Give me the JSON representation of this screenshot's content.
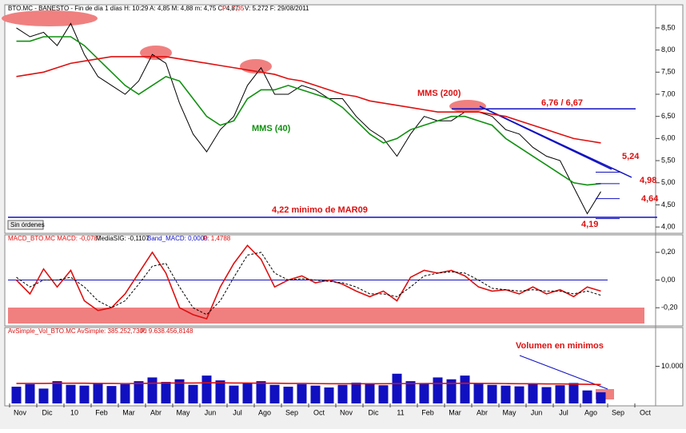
{
  "header": {
    "price": [
      "BTO.MC - BANESTO - Fin de día 1 días H: 10:29 A: 4,85 M: 4,88 m: 4,75 C: 4,87",
      "P : 7,35",
      "V: 5.272 F: 29/08/2011"
    ],
    "macd": [
      "MACD_BTO.MC MACD: -0,0787",
      "MediaSIG: -0,1107",
      "Band_MACD: 0,0000",
      "P: 1,4788"
    ],
    "volume": [
      "AvSimple_Vol_BTO.MC AvSimple: 385.252,7300",
      "P: 9.638.456,8148"
    ],
    "button": "Sin órdenes"
  },
  "time_axis": {
    "labels": [
      "Nov",
      "Dic",
      "10",
      "Feb",
      "Mar",
      "Abr",
      "May",
      "Jun",
      "Jul",
      "Ago",
      "Sep",
      "Oct",
      "Nov",
      "Dic",
      "11",
      "Feb",
      "Mar",
      "Abr",
      "May",
      "Jun",
      "Jul",
      "Ago",
      "Sep",
      "Oct"
    ]
  },
  "chart_data": [
    {
      "type": "line",
      "ylim": [
        3.93,
        8.95
      ],
      "yticks": [
        {
          "value": 4,
          "label": "4,00"
        },
        {
          "value": 4.5,
          "label": "4,50"
        },
        {
          "value": 5,
          "label": "5,00"
        },
        {
          "value": 5.5,
          "label": "5,50"
        },
        {
          "value": 6,
          "label": "6,00"
        },
        {
          "value": 6.5,
          "label": "6,50"
        },
        {
          "value": 7,
          "label": "7,00"
        },
        {
          "value": 7.5,
          "label": "7,50"
        },
        {
          "value": 8,
          "label": "8,00"
        },
        {
          "value": 8.5,
          "label": "8,50"
        }
      ],
      "series": [
        {
          "name": "BTO.MC",
          "color": "#000000",
          "values": [
            8.5,
            8.3,
            8.4,
            8.1,
            8.6,
            7.9,
            7.4,
            7.2,
            7.0,
            7.3,
            7.9,
            7.7,
            6.8,
            6.1,
            5.7,
            6.2,
            6.5,
            7.2,
            7.6,
            7.0,
            7.0,
            7.2,
            7.1,
            6.9,
            6.9,
            6.5,
            6.2,
            6.0,
            5.6,
            6.1,
            6.5,
            6.4,
            6.4,
            6.6,
            6.6,
            6.5,
            6.2,
            6.1,
            5.8,
            5.6,
            5.5,
            4.9,
            4.3,
            4.8
          ]
        },
        {
          "name": "MMS (40)",
          "color": "#109010",
          "values": [
            8.2,
            8.2,
            8.3,
            8.3,
            8.3,
            8.1,
            7.8,
            7.5,
            7.2,
            7.0,
            7.2,
            7.4,
            7.3,
            6.9,
            6.5,
            6.3,
            6.4,
            6.9,
            7.1,
            7.1,
            7.2,
            7.1,
            7.0,
            6.9,
            6.7,
            6.4,
            6.1,
            5.9,
            6.0,
            6.2,
            6.3,
            6.4,
            6.5,
            6.5,
            6.4,
            6.3,
            6.0,
            5.8,
            5.6,
            5.4,
            5.2,
            5.0,
            4.95,
            4.98
          ]
        },
        {
          "name": "MMS (200)",
          "color": "#dd1010",
          "values": [
            7.4,
            7.45,
            7.5,
            7.6,
            7.7,
            7.75,
            7.8,
            7.85,
            7.85,
            7.85,
            7.85,
            7.85,
            7.8,
            7.75,
            7.7,
            7.65,
            7.6,
            7.55,
            7.5,
            7.45,
            7.35,
            7.3,
            7.2,
            7.1,
            7.0,
            6.95,
            6.85,
            6.8,
            6.75,
            6.7,
            6.65,
            6.6,
            6.6,
            6.6,
            6.6,
            6.55,
            6.5,
            6.4,
            6.3,
            6.2,
            6.1,
            6.0,
            5.95,
            5.9
          ]
        }
      ],
      "levels": [
        6.67,
        4.22
      ],
      "annotations": [
        {
          "text": "MMS (200)",
          "color": "#dd1010"
        },
        {
          "text": "MMS (40)",
          "color": "#109010"
        },
        {
          "text": "6,76 / 6,67",
          "color": "#dd1010"
        },
        {
          "text": "5,24",
          "value": 5.24,
          "color": "#dd1010"
        },
        {
          "text": "4,98",
          "value": 4.98,
          "color": "#dd1010"
        },
        {
          "text": "4,64",
          "value": 4.64,
          "color": "#dd1010"
        },
        {
          "text": "4,19",
          "value": 4.19,
          "color": "#dd1010"
        },
        {
          "text": "4,22 minimo de MAR09",
          "color": "#dd1010"
        }
      ]
    },
    {
      "type": "line",
      "ylim": [
        -0.32,
        0.28
      ],
      "yticks": [
        {
          "value": 0.2,
          "label": "0,20"
        },
        {
          "value": 0,
          "label": "0,00"
        },
        {
          "value": -0.2,
          "label": "-0,20"
        }
      ],
      "series": [
        {
          "name": "MACD",
          "color": "#dd1010",
          "values": [
            0.0,
            -0.1,
            0.08,
            -0.05,
            0.07,
            -0.15,
            -0.22,
            -0.2,
            -0.1,
            0.05,
            0.2,
            0.05,
            -0.2,
            -0.25,
            -0.28,
            -0.05,
            0.12,
            0.25,
            0.15,
            -0.05,
            0.0,
            0.03,
            -0.02,
            0.0,
            -0.03,
            -0.08,
            -0.12,
            -0.08,
            -0.15,
            0.02,
            0.07,
            0.05,
            0.07,
            0.03,
            -0.05,
            -0.08,
            -0.07,
            -0.1,
            -0.05,
            -0.1,
            -0.07,
            -0.12,
            -0.05,
            -0.08
          ]
        },
        {
          "name": "MediaSIG",
          "color": "#000000",
          "values": [
            0.02,
            -0.05,
            0.0,
            0.0,
            0.02,
            -0.05,
            -0.15,
            -0.2,
            -0.15,
            -0.03,
            0.1,
            0.12,
            -0.05,
            -0.2,
            -0.25,
            -0.15,
            0.02,
            0.18,
            0.2,
            0.05,
            0.0,
            0.01,
            0.0,
            -0.01,
            -0.02,
            -0.05,
            -0.1,
            -0.1,
            -0.12,
            -0.05,
            0.03,
            0.05,
            0.06,
            0.05,
            0.0,
            -0.06,
            -0.07,
            -0.08,
            -0.07,
            -0.08,
            -0.08,
            -0.1,
            -0.08,
            -0.11
          ]
        }
      ]
    },
    {
      "type": "bar",
      "ylim": [
        0,
        20000
      ],
      "yticks": [
        {
          "value": 10000,
          "label": "10.000"
        }
      ],
      "series": [
        {
          "name": "Vol",
          "color": "#1010c0",
          "values": [
            4500,
            5200,
            4000,
            6000,
            5000,
            4800,
            5500,
            4700,
            5200,
            6000,
            7000,
            5800,
            6500,
            5000,
            7500,
            6200,
            4800,
            5500,
            6000,
            5000,
            4500,
            5200,
            4800,
            4300,
            5000,
            5600,
            5200,
            4900,
            8000,
            6000,
            5500,
            7000,
            6500,
            7500,
            5500,
            5000,
            4800,
            4600,
            5200,
            4400,
            4900,
            5500,
            3500,
            3000
          ]
        },
        {
          "name": "AvSimple",
          "color": "#dd1010",
          "values": [
            5400,
            5400,
            5400,
            5450,
            5450,
            5450,
            5400,
            5400,
            5350,
            5400,
            5450,
            5500,
            5500,
            5500,
            5550,
            5550,
            5500,
            5500,
            5450,
            5450,
            5400,
            5400,
            5350,
            5300,
            5300,
            5300,
            5300,
            5300,
            5350,
            5350,
            5350,
            5400,
            5400,
            5450,
            5400,
            5400,
            5350,
            5300,
            5300,
            5250,
            5250,
            5200,
            5150,
            5100
          ]
        }
      ],
      "annotations": [
        {
          "text": "Volumen en minimos",
          "color": "#dd1010"
        }
      ]
    }
  ]
}
